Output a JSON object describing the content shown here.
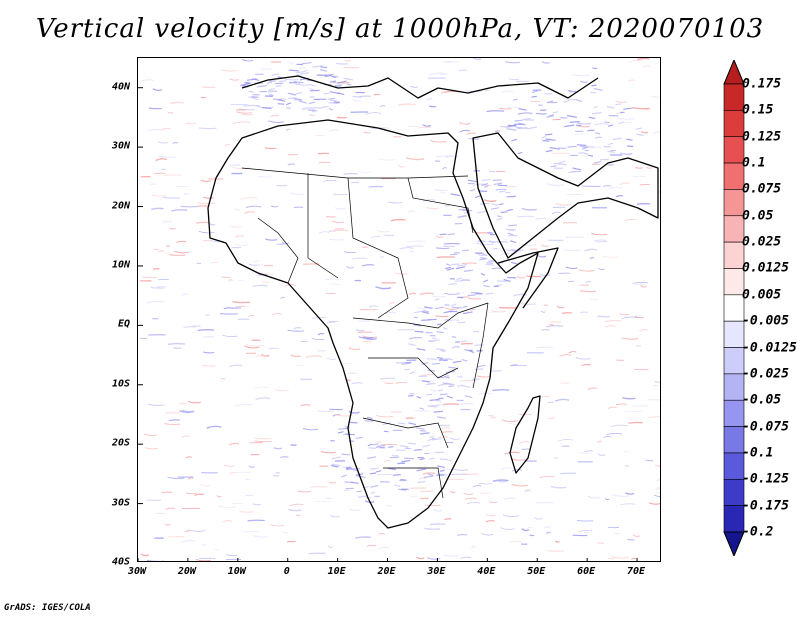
{
  "title": "Vertical velocity [m/s] at 1000hPa, VT: 2020070103",
  "footer": "GrADS: IGES/COLA",
  "map": {
    "lon_range": [
      -30,
      75
    ],
    "lat_range": [
      -40,
      45
    ],
    "lat_ticks": [
      {
        "value": 40,
        "label": "40N"
      },
      {
        "value": 30,
        "label": "30N"
      },
      {
        "value": 20,
        "label": "20N"
      },
      {
        "value": 10,
        "label": "10N"
      },
      {
        "value": 0,
        "label": "EQ"
      },
      {
        "value": -10,
        "label": "10S"
      },
      {
        "value": -20,
        "label": "20S"
      },
      {
        "value": -30,
        "label": "30S"
      },
      {
        "value": -40,
        "label": "40S"
      }
    ],
    "lon_ticks": [
      {
        "value": -30,
        "label": "30W"
      },
      {
        "value": -20,
        "label": "20W"
      },
      {
        "value": -10,
        "label": "10W"
      },
      {
        "value": 0,
        "label": "0"
      },
      {
        "value": 10,
        "label": "10E"
      },
      {
        "value": 20,
        "label": "20E"
      },
      {
        "value": 30,
        "label": "30E"
      },
      {
        "value": 40,
        "label": "40E"
      },
      {
        "value": 50,
        "label": "50E"
      },
      {
        "value": 60,
        "label": "60E"
      },
      {
        "value": 70,
        "label": "70E"
      }
    ]
  },
  "colorbar": {
    "levels": [
      "0.175",
      "0.15",
      "0.125",
      "0.1",
      "0.075",
      "0.05",
      "0.025",
      "0.0125",
      "0.005",
      "-0.005",
      "-0.0125",
      "-0.025",
      "-0.05",
      "-0.075",
      "-0.1",
      "-0.125",
      "-0.175",
      "-0.2"
    ],
    "colors": [
      "#b41e1e",
      "#c82828",
      "#dc3c3c",
      "#e65050",
      "#f07070",
      "#f59696",
      "#f8b4b4",
      "#fcd2d2",
      "#ffe8e8",
      "#ffffff",
      "#e6e6ff",
      "#cdcdfa",
      "#b4b4f5",
      "#9696f0",
      "#7878e6",
      "#5a5adc",
      "#3c3cc8",
      "#2828b4",
      "#14148c"
    ]
  }
}
